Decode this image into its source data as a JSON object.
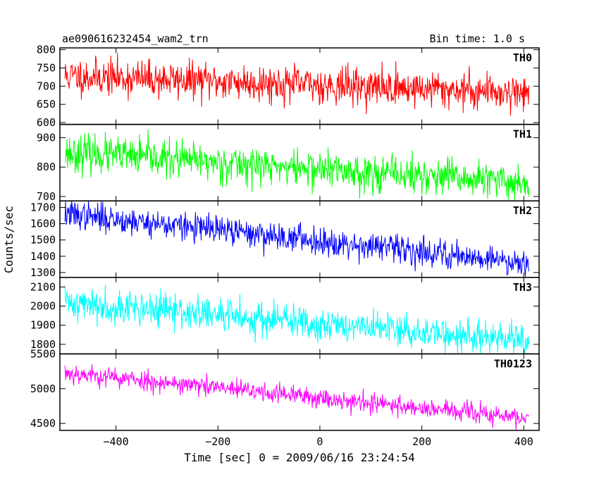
{
  "header": {
    "left_title": "ae090616232454_wam2_trn",
    "right_title": "Bin time: 1.0 s"
  },
  "chart_data": {
    "type": "line",
    "title": "ae090616232454_wam2_trn",
    "subtitle": "Bin time: 1.0 s",
    "xlabel": "Time [sec] 0 = 2009/06/16 23:24:54",
    "ylabel": "Counts/sec",
    "xlim": [
      -510,
      430
    ],
    "xticks": [
      -400,
      -200,
      0,
      200,
      400
    ],
    "x_start": -500,
    "x_end": 410,
    "bin": 1.0,
    "grid": false,
    "panels": [
      {
        "name": "TH0",
        "color": "#ff0000",
        "ylim": [
          595,
          805
        ],
        "yticks": [
          600,
          650,
          700,
          750,
          800
        ],
        "trend_start": 728,
        "trend_end": 683,
        "noise": 42,
        "seed": 11
      },
      {
        "name": "TH1",
        "color": "#00ff00",
        "ylim": [
          685,
          945
        ],
        "yticks": [
          700,
          800,
          900
        ],
        "trend_start": 850,
        "trend_end": 745,
        "noise": 52,
        "seed": 23
      },
      {
        "name": "TH2",
        "color": "#0000ff",
        "ylim": [
          1270,
          1740
        ],
        "yticks": [
          1300,
          1400,
          1500,
          1600,
          1700
        ],
        "trend_start": 1660,
        "trend_end": 1360,
        "noise": 72,
        "seed": 37
      },
      {
        "name": "TH3",
        "color": "#00ffff",
        "ylim": [
          1750,
          2150
        ],
        "yticks": [
          1800,
          1900,
          2000,
          2100
        ],
        "trend_start": 2020,
        "trend_end": 1815,
        "noise": 75,
        "seed": 41
      },
      {
        "name": "TH0123",
        "color": "#ff00ff",
        "ylim": [
          4400,
          5500
        ],
        "yticks": [
          4500,
          5000,
          5500
        ],
        "trend_start": 5230,
        "trend_end": 4570,
        "noise": 120,
        "seed": 53
      }
    ]
  }
}
